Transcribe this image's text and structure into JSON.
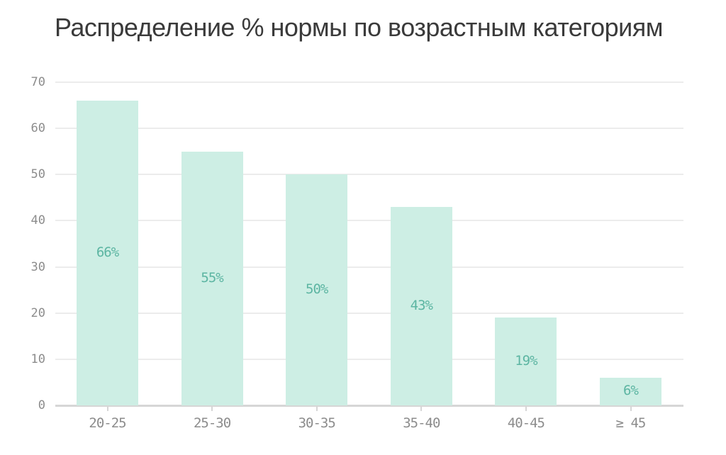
{
  "chart_data": {
    "type": "bar",
    "title": "Распределение % нормы по возрастным категориям",
    "xlabel": "",
    "ylabel": "",
    "categories": [
      "20-25",
      "25-30",
      "30-35",
      "35-40",
      "40-45",
      "≥ 45"
    ],
    "values": [
      66,
      55,
      50,
      43,
      19,
      6
    ],
    "value_labels": [
      "66%",
      "55%",
      "50%",
      "43%",
      "19%",
      "6%"
    ],
    "ylim": [
      0,
      70
    ],
    "yticks": [
      "0",
      "10",
      "20",
      "30",
      "40",
      "50",
      "60",
      "70"
    ],
    "grid": true,
    "legend": null,
    "colors": {
      "bar": "#cdeee4",
      "label": "#5cb5a2",
      "grid": "#ececec",
      "axis_text": "#8c8c8c"
    }
  }
}
